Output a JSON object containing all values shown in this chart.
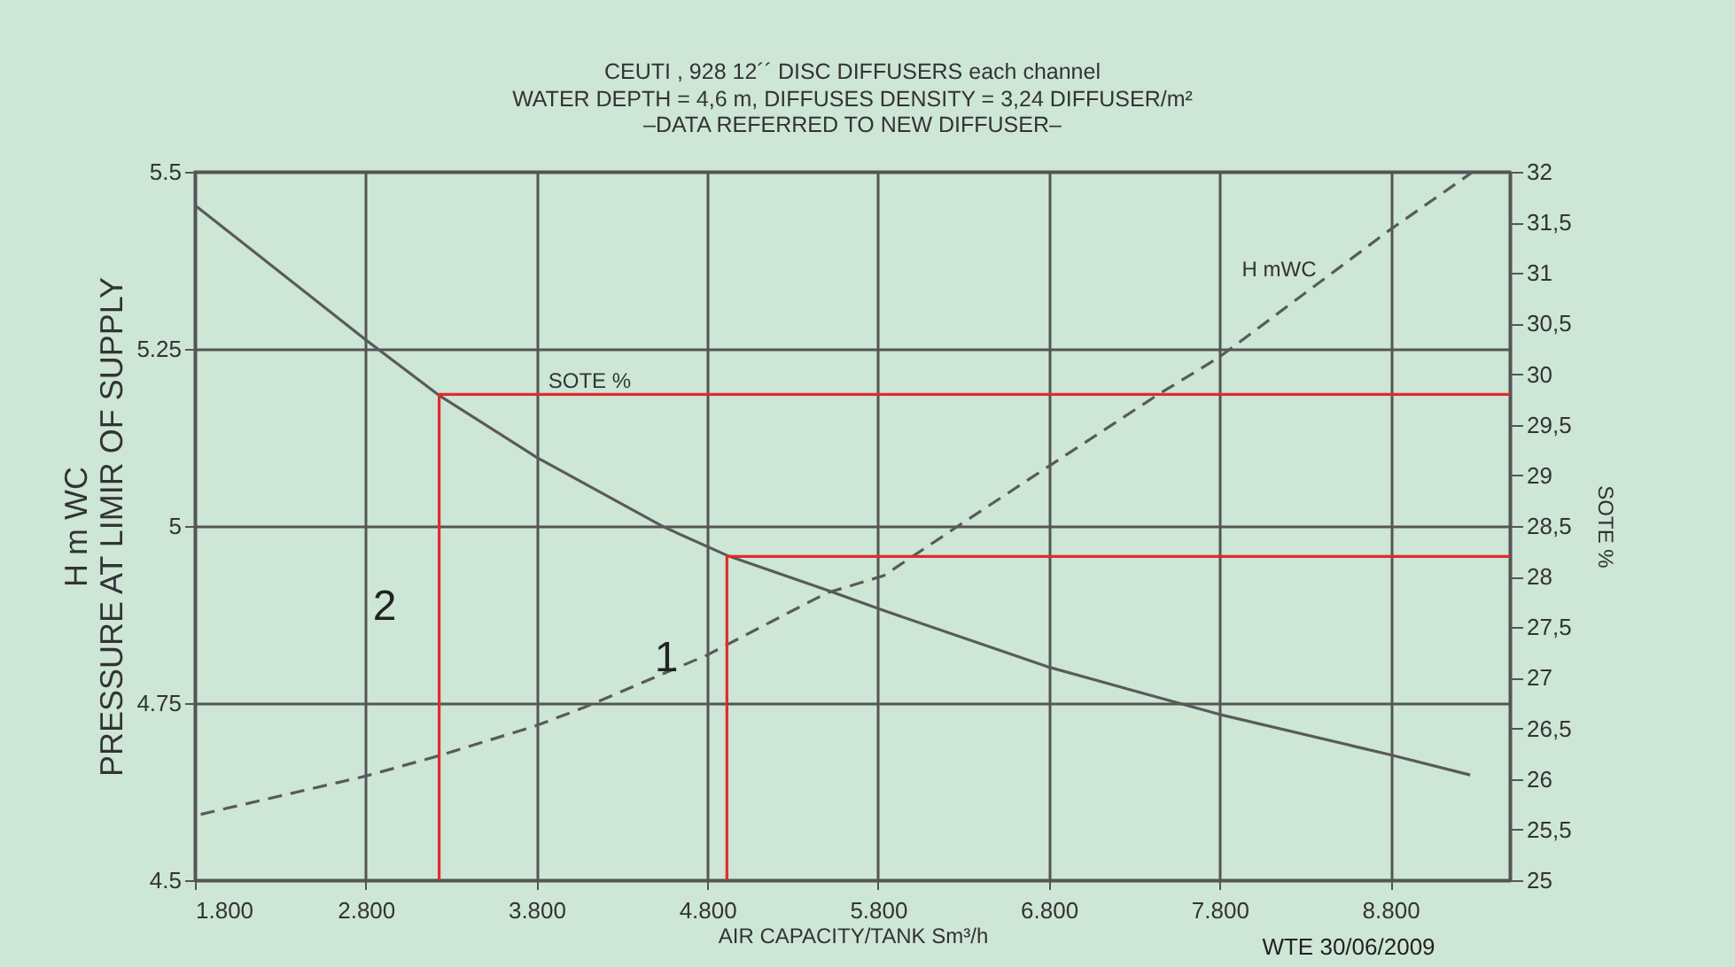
{
  "chart_data": {
    "type": "line",
    "title": "CEUTI , 928 12´´ DISC DIFFUSERS each channel",
    "subtitle": "WATER DEPTH = 4,6 m, DIFFUSES DENSITY = 3,24 DIFFUSER/m²\n–DATA REFERRED TO NEW DIFFUSER–",
    "xlabel": "AIR CAPACITY/TANK Sm³/h",
    "ylabel": "H m WC\nPRESSURE AT LIMIR OF SUPPLY",
    "y2label": "SOTE %",
    "xlim": [
      1800,
      9500
    ],
    "xticks": [
      {
        "value": 1800,
        "label": "1.800"
      },
      {
        "value": 2800,
        "label": "2.800"
      },
      {
        "value": 3800,
        "label": "3.800"
      },
      {
        "value": 4800,
        "label": "4.800"
      },
      {
        "value": 5800,
        "label": "5.800"
      },
      {
        "value": 6800,
        "label": "6.800"
      },
      {
        "value": 7800,
        "label": "7.800"
      },
      {
        "value": 8800,
        "label": "8.800"
      }
    ],
    "ylim": [
      4.5,
      5.5
    ],
    "yticks": [
      4.5,
      4.75,
      5,
      5.25,
      5.5
    ],
    "y2lim": [
      25,
      32
    ],
    "y2ticks": [
      25,
      {
        "value": 25.5,
        "label": "25,5"
      },
      26,
      {
        "value": 26.5,
        "label": "26,5"
      },
      27,
      {
        "value": 27.5,
        "label": "27,5"
      },
      28,
      {
        "value": 28.5,
        "label": "28,5"
      },
      29,
      {
        "value": 29.5,
        "label": "29,5"
      },
      30,
      {
        "value": 30.5,
        "label": "30,5"
      },
      31,
      {
        "value": 31.5,
        "label": "31,5"
      },
      32
    ],
    "grid": true,
    "series": [
      {
        "name": "H mWC",
        "color": "#5a5a5a",
        "line_style": "dashed",
        "x": [
          1834,
          2800,
          3233,
          3796,
          4080,
          4800,
          5495,
          5834,
          6325,
          6791,
          7430,
          7796,
          8797,
          9278
        ],
        "values": [
          4.593,
          4.647,
          4.676,
          4.718,
          4.744,
          4.818,
          4.905,
          4.93,
          5.009,
          5.083,
          5.184,
          5.238,
          5.418,
          5.499
        ]
      },
      {
        "name": "SOTE %",
        "color": "#5a5a5a",
        "axis": "y2",
        "x": [
          1800,
          2800,
          3230,
          3800,
          4546,
          4915,
          5495,
          5842,
          6791,
          7796,
          8797,
          9267
        ],
        "values": [
          31.67,
          30.34,
          29.79,
          29.18,
          28.49,
          28.21,
          27.87,
          27.66,
          27.11,
          26.64,
          26.24,
          26.04
        ]
      },
      {
        "color": "#e02b2b",
        "axis": "y2",
        "x": [
          3230,
          3230,
          9500
        ],
        "values": [
          25,
          29.8,
          29.8
        ]
      },
      {
        "color": "#e02b2b",
        "axis": "y2",
        "x": [
          4915,
          4915,
          9500
        ],
        "values": [
          25,
          28.2,
          28.2
        ]
      }
    ],
    "annotations": [
      "2",
      "1",
      "WTE 30/06/2009"
    ]
  }
}
